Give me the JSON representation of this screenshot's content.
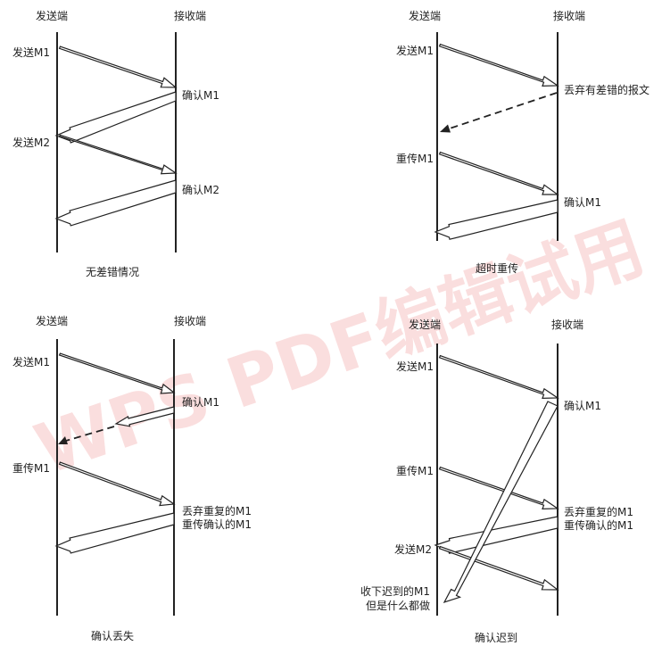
{
  "watermark": "WPS PDF编辑试用",
  "panels": {
    "tl": {
      "sender": "发送端",
      "receiver": "接收端",
      "labels": {
        "m1_send": "发送M1",
        "ack_m1": "确认M1",
        "m2_send": "发送M2",
        "ack_m2": "确认M2"
      },
      "caption": "无差错情况"
    },
    "tr": {
      "sender": "发送端",
      "receiver": "接收端",
      "labels": {
        "m1_send": "发送M1",
        "discard": "丢弃有差错的报文",
        "resend": "重传M1",
        "ack_m1": "确认M1"
      },
      "caption": "超时重传"
    },
    "bl": {
      "sender": "发送端",
      "receiver": "接收端",
      "labels": {
        "m1_send": "发送M1",
        "ack_m1": "确认M1",
        "resend": "重传M1",
        "discard_line1": "丢弃重复的M1",
        "discard_line2": "重传确认的M1"
      },
      "caption": "确认丢失"
    },
    "br": {
      "sender": "发送端",
      "receiver": "接收端",
      "labels": {
        "m1_send": "发送M1",
        "ack_m1": "确认M1",
        "resend": "重传M1",
        "discard_line1": "丢弃重复的M1",
        "discard_line2": "重传确认的M1",
        "m2_send": "发送M2",
        "late_line1": "收下迟到的M1",
        "late_line2": "但是什么都做"
      },
      "caption": "确认迟到"
    }
  },
  "colors": {
    "line": "#222222",
    "watermark": "#e63b3b"
  }
}
